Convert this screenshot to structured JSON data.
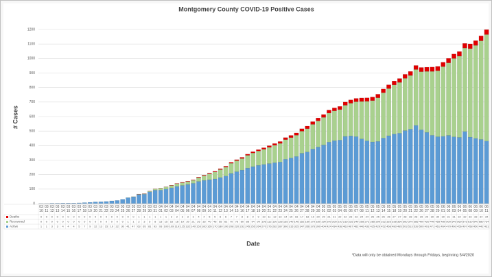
{
  "chart_data": {
    "type": "stacked-bar",
    "title": "Montgomery County COVID-19 Positive Cases",
    "x_label": "Date",
    "y_label": "# Cases",
    "footnote": "*Data will only be obtained Mondays through Fridays, beginning 5/4/2020",
    "categories": [
      "03 10",
      "03 11",
      "03 12",
      "03 13",
      "03 14",
      "03 15",
      "03 16",
      "03 17",
      "03 18",
      "03 19",
      "03 20",
      "03 21",
      "03 22",
      "03 23",
      "03 24",
      "03 25",
      "03 26",
      "03 27",
      "03 28",
      "03 29",
      "03 30",
      "03 31",
      "04 01",
      "04 02",
      "04 03",
      "04 04",
      "04 05",
      "04 06",
      "04 07",
      "04 08",
      "04 09",
      "04 10",
      "04 11",
      "04 12",
      "04 13",
      "04 14",
      "04 15",
      "04 16",
      "04 17",
      "04 18",
      "04 19",
      "04 20",
      "04 21",
      "04 22",
      "04 23",
      "04 24",
      "04 25",
      "04 26",
      "04 27",
      "04 28",
      "04 29",
      "04 30",
      "05 01",
      "05 02",
      "05 03",
      "05 04",
      "05 05",
      "05 06",
      "05 07",
      "05 08",
      "05 11",
      "05 12",
      "05 13",
      "05 14",
      "05 15",
      "05 18",
      "05 19",
      "05 20",
      "05 21",
      "05 22",
      "05 26",
      "05 27",
      "05 28",
      "05 29",
      "06 01",
      "06 02",
      "06 03",
      "06 04",
      "06 05",
      "06 08",
      "06 09",
      "06 10",
      "06 11"
    ],
    "series": [
      {
        "name": "Active",
        "color": "#5b9bd5",
        "values": [
          1,
          1,
          3,
          3,
          4,
          4,
          4,
          5,
          7,
          9,
          12,
          13,
          15,
          19,
          22,
          30,
          41,
          47,
          63,
          65,
          81,
          93,
          93,
          100,
          109,
          119,
          125,
          132,
          140,
          153,
          160,
          165,
          170,
          180,
          190,
          208,
          220,
          231,
          245,
          255,
          264,
          270,
          276,
          282,
          287,
          306,
          315,
          325,
          347,
          356,
          376,
          390,
          404,
          424,
          434,
          438,
          463,
          467,
          462,
          446,
          433,
          425,
          429,
          452,
          468,
          480,
          485,
          503,
          513,
          539,
          509,
          491,
          471,
          461,
          464,
          470,
          460,
          456,
          497,
          458,
          450,
          442,
          431
        ]
      },
      {
        "name": "Recovered",
        "color": "#a9d18e",
        "values": [
          0,
          0,
          0,
          0,
          0,
          0,
          0,
          0,
          0,
          0,
          0,
          0,
          0,
          0,
          0,
          0,
          1,
          1,
          2,
          3,
          5,
          8,
          13,
          15,
          16,
          18,
          19,
          20,
          21,
          26,
          33,
          40,
          48,
          55,
          62,
          70,
          76,
          80,
          88,
          94,
          99,
          105,
          112,
          120,
          128,
          135,
          140,
          146,
          152,
          160,
          170,
          180,
          190,
          200,
          205,
          210,
          215,
          225,
          240,
          258,
          272,
          285,
          300,
          312,
          325,
          338,
          350,
          360,
          370,
          385,
          400,
          420,
          440,
          455,
          480,
          500,
          540,
          560,
          575,
          610,
          640,
          680,
          734
        ]
      },
      {
        "name": "Deaths",
        "color": "#e00000",
        "values": [
          0,
          0,
          0,
          0,
          0,
          0,
          0,
          0,
          0,
          0,
          0,
          0,
          0,
          0,
          0,
          0,
          0,
          0,
          1,
          1,
          1,
          1,
          1,
          1,
          2,
          2,
          3,
          3,
          3,
          4,
          4,
          5,
          5,
          6,
          6,
          7,
          7,
          8,
          8,
          9,
          9,
          10,
          11,
          12,
          13,
          14,
          15,
          16,
          17,
          18,
          19,
          20,
          20,
          21,
          21,
          22,
          22,
          23,
          23,
          24,
          24,
          25,
          25,
          26,
          26,
          27,
          27,
          28,
          28,
          28,
          29,
          29,
          30,
          30,
          30,
          31,
          31,
          32,
          32,
          33,
          33,
          34,
          34
        ]
      }
    ],
    "ylim": [
      0,
      1200
    ],
    "yticks": [
      0,
      100,
      200,
      300,
      400,
      500,
      600,
      700,
      800,
      900,
      1000,
      1100,
      1200
    ],
    "grid": true
  }
}
